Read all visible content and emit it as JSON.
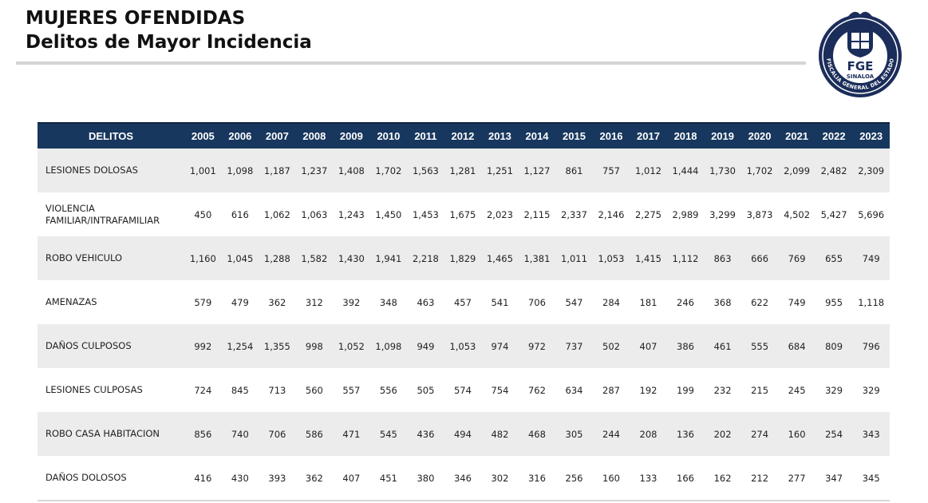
{
  "header": {
    "title": "MUJERES OFENDIDAS",
    "subtitle": "Delitos de Mayor Incidencia"
  },
  "logo": {
    "text": "FGE",
    "subtext": "SINALOA",
    "ring_text": "FISCALIA GENERAL DEL ESTADO",
    "colors": {
      "navy": "#1b2d5a",
      "white": "#ffffff"
    }
  },
  "table": {
    "header_bg": "#17375e",
    "row_alt_bg": "#ececec",
    "columns": [
      "DELITOS",
      "2005",
      "2006",
      "2007",
      "2008",
      "2009",
      "2010",
      "2011",
      "2012",
      "2013",
      "2014",
      "2015",
      "2016",
      "2017",
      "2018",
      "2019",
      "2020",
      "2021",
      "2022",
      "2023"
    ],
    "rows": [
      {
        "label": "LESIONES DOLOSAS",
        "values": [
          "1,001",
          "1,098",
          "1,187",
          "1,237",
          "1,408",
          "1,702",
          "1,563",
          "1,281",
          "1,251",
          "1,127",
          "861",
          "757",
          "1,012",
          "1,444",
          "1,730",
          "1,702",
          "2,099",
          "2,482",
          "2,309"
        ]
      },
      {
        "label": "VIOLENCIA FAMILIAR/INTRAFAMILIAR",
        "values": [
          "450",
          "616",
          "1,062",
          "1,063",
          "1,243",
          "1,450",
          "1,453",
          "1,675",
          "2,023",
          "2,115",
          "2,337",
          "2,146",
          "2,275",
          "2,989",
          "3,299",
          "3,873",
          "4,502",
          "5,427",
          "5,696"
        ]
      },
      {
        "label": "ROBO VEHICULO",
        "values": [
          "1,160",
          "1,045",
          "1,288",
          "1,582",
          "1,430",
          "1,941",
          "2,218",
          "1,829",
          "1,465",
          "1,381",
          "1,011",
          "1,053",
          "1,415",
          "1,112",
          "863",
          "666",
          "769",
          "655",
          "749"
        ]
      },
      {
        "label": "AMENAZAS",
        "values": [
          "579",
          "479",
          "362",
          "312",
          "392",
          "348",
          "463",
          "457",
          "541",
          "706",
          "547",
          "284",
          "181",
          "246",
          "368",
          "622",
          "749",
          "955",
          "1,118"
        ]
      },
      {
        "label": "DAÑOS CULPOSOS",
        "values": [
          "992",
          "1,254",
          "1,355",
          "998",
          "1,052",
          "1,098",
          "949",
          "1,053",
          "974",
          "972",
          "737",
          "502",
          "407",
          "386",
          "461",
          "555",
          "684",
          "809",
          "796"
        ]
      },
      {
        "label": "LESIONES CULPOSAS",
        "values": [
          "724",
          "845",
          "713",
          "560",
          "557",
          "556",
          "505",
          "574",
          "754",
          "762",
          "634",
          "287",
          "192",
          "199",
          "232",
          "215",
          "245",
          "329",
          "329"
        ]
      },
      {
        "label": "ROBO CASA HABITACION",
        "values": [
          "856",
          "740",
          "706",
          "586",
          "471",
          "545",
          "436",
          "494",
          "482",
          "468",
          "305",
          "244",
          "208",
          "136",
          "202",
          "274",
          "160",
          "254",
          "343"
        ]
      },
      {
        "label": "DAÑOS DOLOSOS",
        "values": [
          "416",
          "430",
          "393",
          "362",
          "407",
          "451",
          "380",
          "346",
          "302",
          "316",
          "256",
          "160",
          "133",
          "166",
          "162",
          "212",
          "277",
          "347",
          "345"
        ]
      }
    ]
  }
}
